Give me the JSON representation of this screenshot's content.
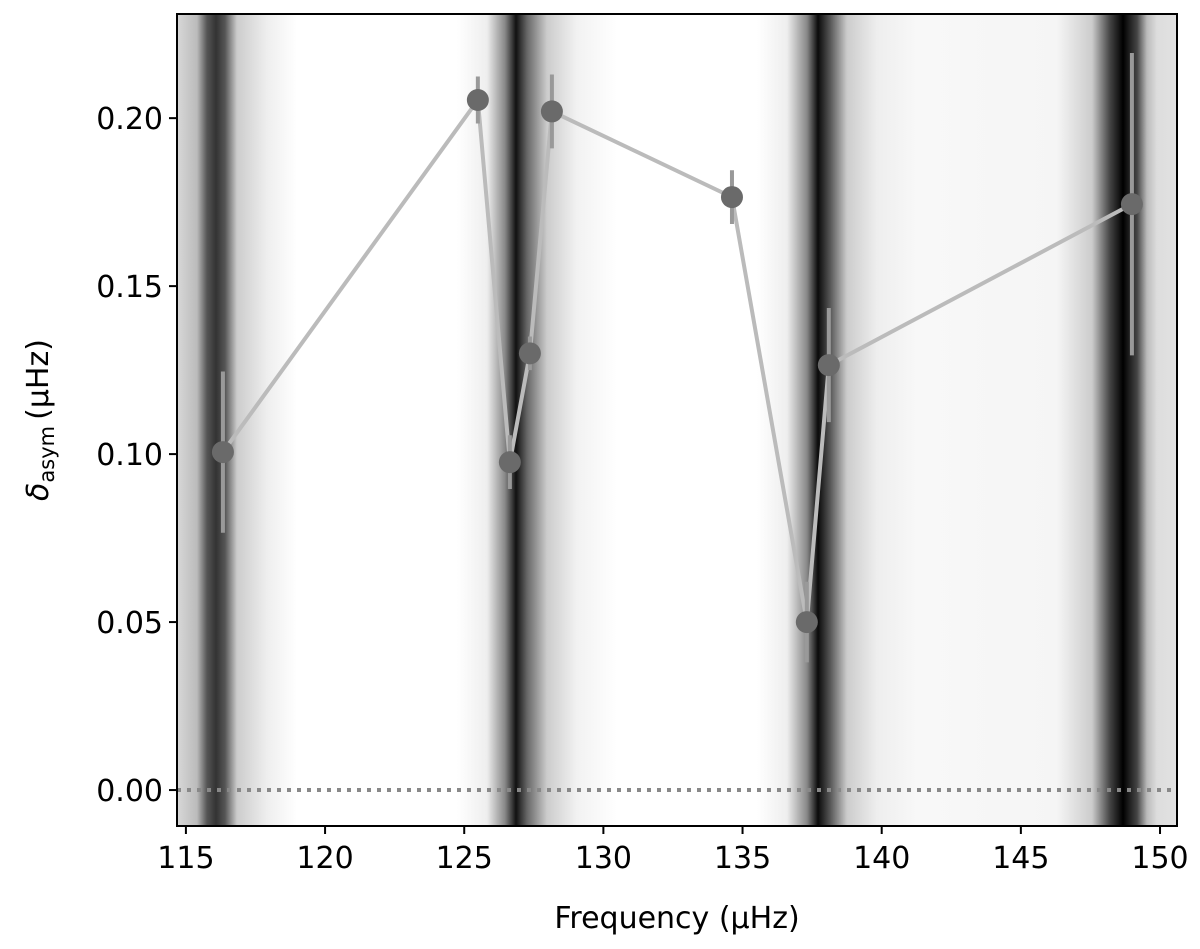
{
  "chart_data": {
    "type": "line",
    "xlabel": "Frequency (μHz)",
    "ylabel": {
      "symbol": "δ",
      "subscript": "asym",
      "unit": "(μHz)"
    },
    "x": [
      116.33,
      125.49,
      126.64,
      127.36,
      128.15,
      134.62,
      137.31,
      138.1,
      148.99
    ],
    "series": [
      {
        "color": "#6a6a6a",
        "values": [
          0.1006,
          0.2054,
          0.0976,
          0.13,
          0.202,
          0.1765,
          0.05,
          0.1265,
          0.1744
        ],
        "errors": [
          0.024,
          0.007,
          0.008,
          0.005,
          0.011,
          0.008,
          0.012,
          0.017,
          0.045
        ]
      }
    ],
    "xlim": [
      114.68,
      150.61
    ],
    "ylim": [
      -0.0107,
      0.231
    ],
    "xticks": [
      115,
      120,
      125,
      130,
      135,
      140,
      145,
      150
    ],
    "yticks": [
      {
        "value": 0,
        "label": "0.00"
      },
      {
        "value": 0.05,
        "label": "0.05"
      },
      {
        "value": 0.1,
        "label": "0.10"
      },
      {
        "value": 0.15,
        "label": "0.15"
      },
      {
        "value": 0.2,
        "label": "0.20"
      }
    ],
    "hline": 0
  }
}
